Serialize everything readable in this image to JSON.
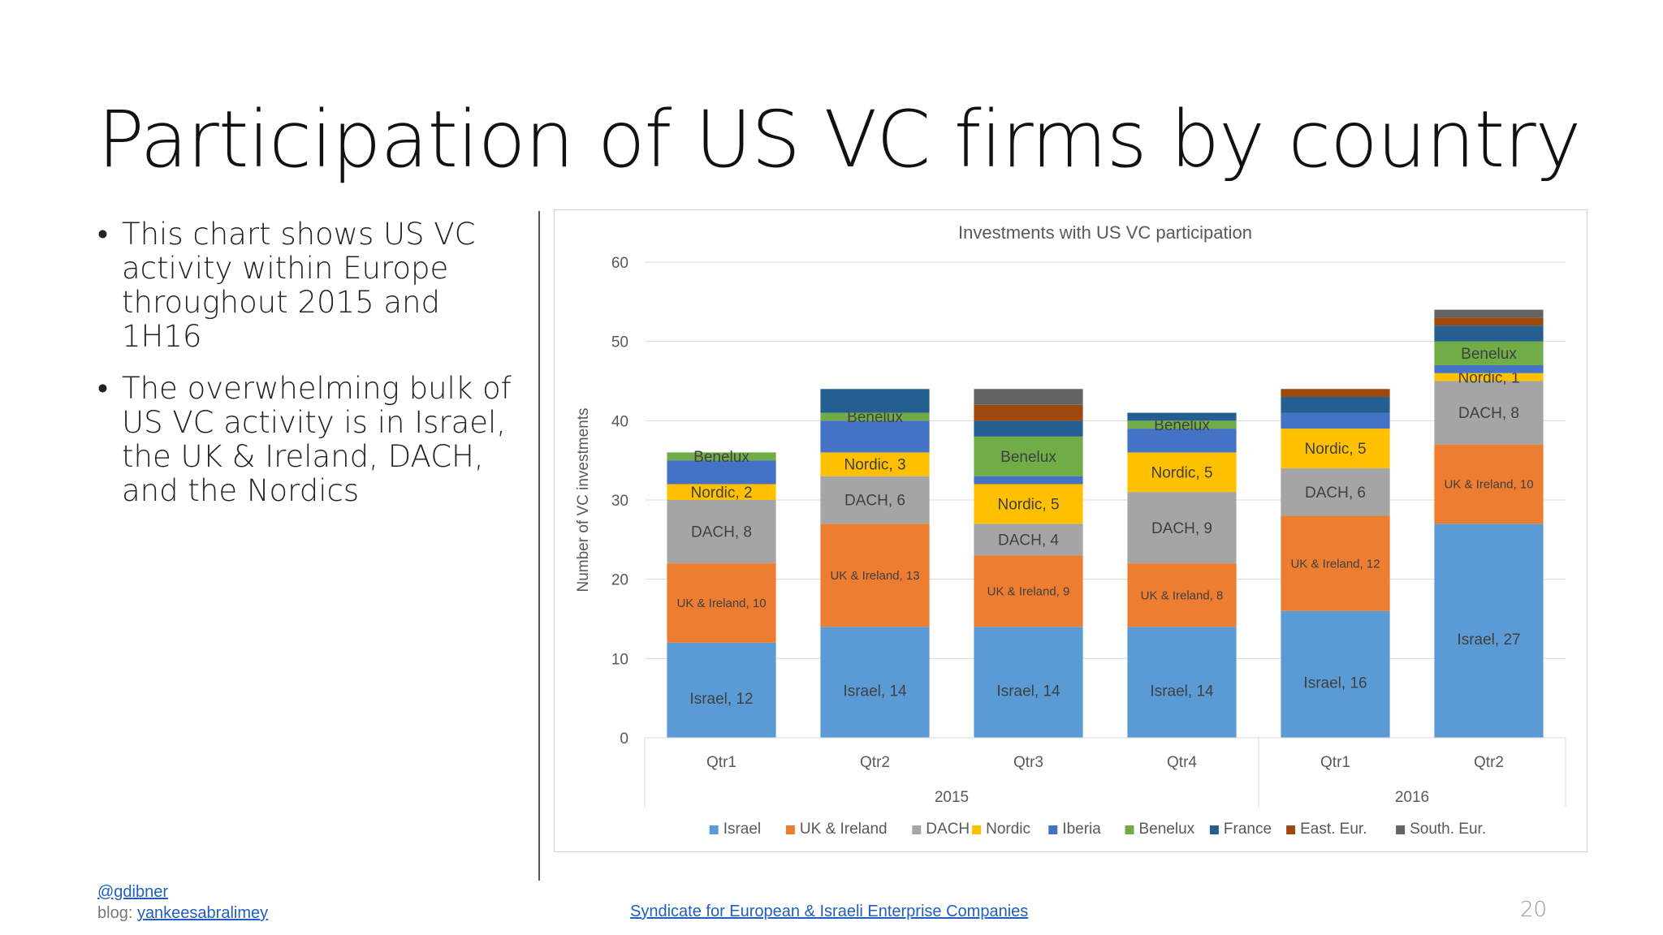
{
  "slide": {
    "title": "Participation of US VC firms by country",
    "bullets": [
      "This chart shows US VC activity within Europe throughout 2015 and 1H16",
      "The overwhelming bulk of US VC activity is in Israel, the UK & Ireland, DACH, and the Nordics"
    ],
    "footer": {
      "handle": "@gdibner",
      "blog_prefix": "blog: ",
      "blog_link": "yankeesabralimey",
      "center_link": "Syndicate for European & Israeli Enterprise Companies",
      "page_number": "20"
    }
  },
  "chart_data": {
    "type": "bar",
    "stacked": true,
    "title": "Investments with US VC participation",
    "ylabel": "Number of VC investments",
    "xlabel": "",
    "ylim": [
      0,
      60
    ],
    "yticks": [
      0,
      10,
      20,
      30,
      40,
      50,
      60
    ],
    "grid": true,
    "legend_position": "bottom",
    "categories": [
      "Qtr1",
      "Qtr2",
      "Qtr3",
      "Qtr4",
      "Qtr1",
      "Qtr2"
    ],
    "groups": [
      {
        "label": "2015",
        "count": 4
      },
      {
        "label": "2016",
        "count": 2
      }
    ],
    "series": [
      {
        "name": "Israel",
        "color": "#5b9bd5",
        "values": [
          12,
          14,
          14,
          14,
          16,
          27
        ],
        "labels": [
          "Israel, 12",
          "Israel, 14",
          "Israel, 14",
          "Israel, 14",
          "Israel, 16",
          "Israel, 27"
        ]
      },
      {
        "name": "UK & Ireland",
        "color": "#ed7d31",
        "values": [
          10,
          13,
          9,
          8,
          12,
          10
        ],
        "labels": [
          "UK & Ireland, 10",
          "UK & Ireland, 13",
          "UK & Ireland, 9",
          "UK & Ireland, 8",
          "UK & Ireland, 12",
          "UK & Ireland, 10"
        ]
      },
      {
        "name": "DACH",
        "color": "#a5a5a5",
        "values": [
          8,
          6,
          4,
          9,
          6,
          8
        ],
        "labels": [
          "DACH, 8",
          "DACH, 6",
          "DACH, 4",
          "DACH, 9",
          "DACH, 6",
          "DACH, 8"
        ]
      },
      {
        "name": "Nordic",
        "color": "#ffc000",
        "values": [
          2,
          3,
          5,
          5,
          5,
          1
        ],
        "labels": [
          "Nordic, 2",
          "Nordic, 3",
          "Nordic, 5",
          "Nordic, 5",
          "Nordic, 5",
          "Nordic, 1"
        ]
      },
      {
        "name": "Iberia",
        "color": "#4472c4",
        "values": [
          3,
          4,
          1,
          3,
          2,
          1
        ],
        "labels": [
          "",
          "",
          "",
          "",
          "",
          ""
        ]
      },
      {
        "name": "Benelux",
        "color": "#70ad47",
        "values": [
          1,
          1,
          5,
          1,
          0,
          3
        ],
        "labels": [
          "Benelux",
          "Benelux",
          "Benelux",
          "Benelux",
          "",
          "Benelux"
        ]
      },
      {
        "name": "France",
        "color": "#255e91",
        "values": [
          0,
          3,
          2,
          1,
          2,
          2
        ],
        "labels": [
          "",
          "",
          "",
          "",
          "",
          ""
        ]
      },
      {
        "name": "East. Eur.",
        "color": "#9e480e",
        "values": [
          0,
          0,
          2,
          0,
          1,
          1
        ],
        "labels": [
          "",
          "",
          "",
          "",
          "",
          ""
        ]
      },
      {
        "name": "South. Eur.",
        "color": "#636363",
        "values": [
          0,
          0,
          2,
          0,
          0,
          1
        ],
        "labels": [
          "",
          "",
          "",
          "",
          "",
          ""
        ]
      }
    ]
  }
}
